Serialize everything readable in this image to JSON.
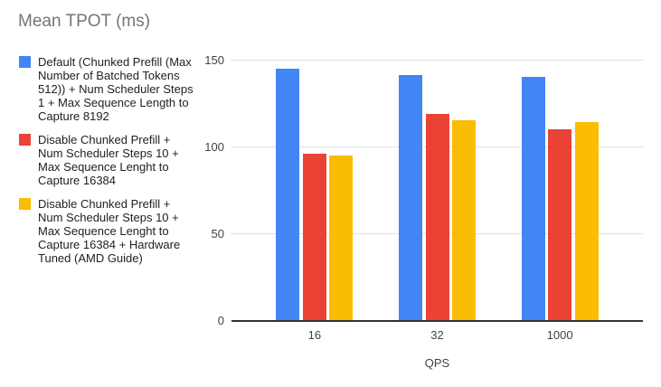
{
  "chart_data": {
    "type": "bar",
    "title": "Mean TPOT (ms)",
    "xlabel": "QPS",
    "ylabel": "",
    "categories": [
      "16",
      "32",
      "1000"
    ],
    "series": [
      {
        "name": "Default (Chunked Prefill (Max Number of Batched Tokens 512)) + Num Scheduler Steps 1 + Max Sequence Length to Capture 8192",
        "color": "#4285F4",
        "values": [
          145,
          141,
          140
        ]
      },
      {
        "name": "Disable Chunked Prefill + Num Scheduler Steps 10 + Max Sequence Lenght to Capture 16384",
        "color": "#EA4335",
        "values": [
          96,
          119,
          110
        ]
      },
      {
        "name": "Disable Chunked Prefill + Num Scheduler Steps 10 + Max Sequence Lenght to Capture 16384 + Hardware Tuned (AMD Guide)",
        "color": "#FBBC04",
        "values": [
          95,
          115,
          114
        ]
      }
    ],
    "ylim": [
      0,
      150
    ],
    "yticks": [
      0,
      50,
      100,
      150
    ],
    "grid": true,
    "legend_position": "left",
    "colors": {
      "title": "#757575",
      "legend_text": "#212121",
      "grid": "#e0e0e0",
      "axis": "#333333",
      "tick_label": "#424242",
      "background": "#ffffff"
    }
  }
}
